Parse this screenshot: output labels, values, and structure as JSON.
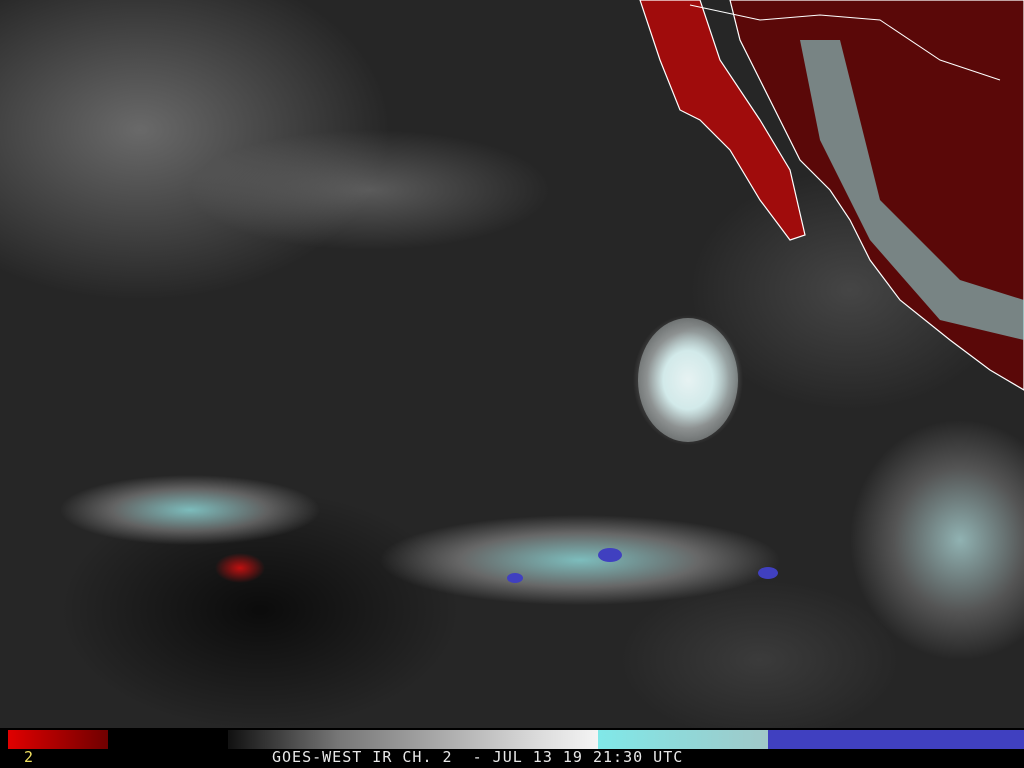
{
  "image": {
    "type": "satellite infrared image",
    "colors": {
      "land_warm": "#c01010",
      "cold_cloud": "#8ad8d8",
      "coldest_cloud": "#4040c0",
      "ocean": "#262626",
      "coastline": "#ffffff"
    }
  },
  "legend": {
    "channel_number": "2",
    "caption": "GOES-WEST IR CH. 2  - JUL 13 19 21:30 UTC",
    "color_scale": [
      "#e00000",
      "#000000",
      "#ffffff",
      "#80e0e0",
      "#4040c0"
    ]
  }
}
